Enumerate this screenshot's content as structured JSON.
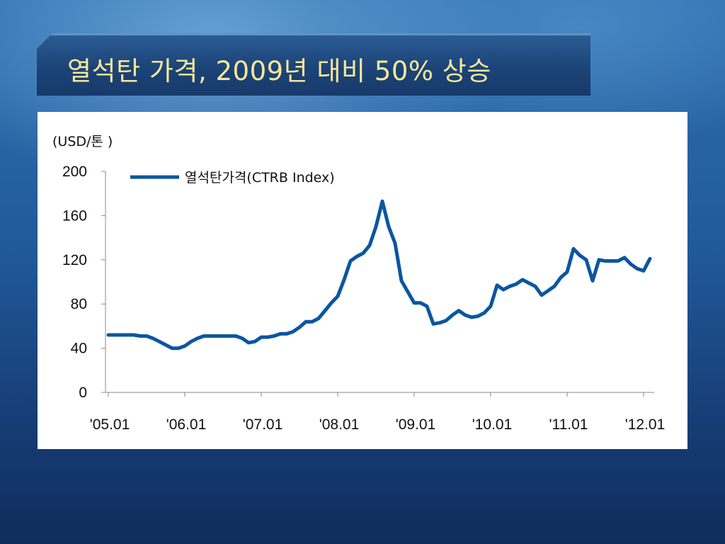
{
  "slide": {
    "title": "열석탄 가격, 2009년 대비 50% 상승"
  },
  "colors": {
    "series": "#0a56a0",
    "title_text": "#f6e79a"
  },
  "chart_data": {
    "type": "line",
    "title": "",
    "unit_label": "(USD/톤 )",
    "xlabel": "",
    "ylabel": "",
    "ylim": [
      0,
      200
    ],
    "yticks": [
      "0",
      "40",
      "80",
      "120",
      "160",
      "200"
    ],
    "xtick_labels": [
      "'05.01",
      "'06.01",
      "'07.01",
      "'08.01",
      "'09.01",
      "'10.01",
      "'11.01",
      "'12.01"
    ],
    "x_start": "2005-01",
    "grid": false,
    "legend_position": "top-left",
    "series": [
      {
        "name": "열석탄가격(CTRB Index)",
        "color": "#0a56a0",
        "x": [
          "2005-01",
          "2005-02",
          "2005-03",
          "2005-04",
          "2005-05",
          "2005-06",
          "2005-07",
          "2005-08",
          "2005-09",
          "2005-10",
          "2005-11",
          "2005-12",
          "2006-01",
          "2006-02",
          "2006-03",
          "2006-04",
          "2006-05",
          "2006-06",
          "2006-07",
          "2006-08",
          "2006-09",
          "2006-10",
          "2006-11",
          "2006-12",
          "2007-01",
          "2007-02",
          "2007-03",
          "2007-04",
          "2007-05",
          "2007-06",
          "2007-07",
          "2007-08",
          "2007-09",
          "2007-10",
          "2007-11",
          "2007-12",
          "2008-01",
          "2008-02",
          "2008-03",
          "2008-04",
          "2008-05",
          "2008-06",
          "2008-07",
          "2008-08",
          "2008-09",
          "2008-10",
          "2008-11",
          "2008-12",
          "2009-01",
          "2009-02",
          "2009-03",
          "2009-04",
          "2009-05",
          "2009-06",
          "2009-07",
          "2009-08",
          "2009-09",
          "2009-10",
          "2009-11",
          "2009-12",
          "2010-01",
          "2010-02",
          "2010-03",
          "2010-04",
          "2010-05",
          "2010-06",
          "2010-07",
          "2010-08",
          "2010-09",
          "2010-10",
          "2010-11",
          "2010-12",
          "2011-01",
          "2011-02",
          "2011-03",
          "2011-04",
          "2011-05",
          "2011-06",
          "2011-07",
          "2011-08",
          "2011-09",
          "2011-10",
          "2011-11",
          "2011-12",
          "2012-01",
          "2012-02"
        ],
        "values": [
          52,
          52,
          52,
          52,
          52,
          51,
          51,
          49,
          46,
          43,
          40,
          40,
          42,
          46,
          49,
          51,
          51,
          51,
          51,
          51,
          51,
          49,
          45,
          46,
          50,
          50,
          51,
          53,
          53,
          55,
          59,
          64,
          64,
          67,
          74,
          81,
          87,
          102,
          119,
          123,
          126,
          133,
          150,
          173,
          150,
          135,
          101,
          91,
          81,
          81,
          78,
          62,
          63,
          65,
          70,
          74,
          70,
          68,
          69,
          72,
          78,
          97,
          93,
          96,
          98,
          102,
          99,
          96,
          88,
          92,
          96,
          104,
          109,
          130,
          124,
          120,
          101,
          120,
          119,
          119,
          119,
          122,
          116,
          112,
          110,
          121
        ]
      }
    ]
  }
}
